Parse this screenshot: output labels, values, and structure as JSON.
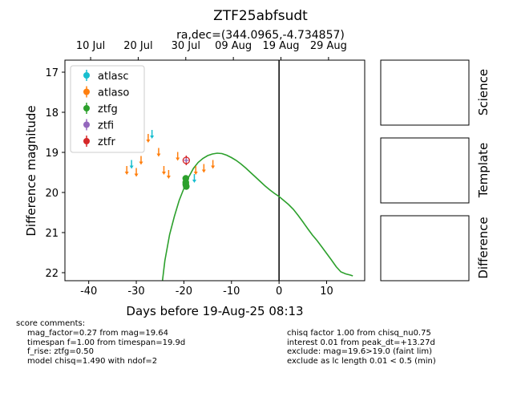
{
  "title": "ZTF25abfsudt",
  "subtitle": "ra,dec=(344.0965,-4.734857)",
  "chart_data": {
    "type": "scatter",
    "xlabel": "Days before 19-Aug-25 08:13",
    "ylabel": "Difference magnitude",
    "xlim": [
      -45,
      18
    ],
    "ylim": [
      22.2,
      16.7
    ],
    "y_inverted": true,
    "x_ticks": [
      -40,
      -30,
      -20,
      -10,
      0,
      10
    ],
    "y_ticks": [
      17,
      18,
      19,
      20,
      21,
      22
    ],
    "top_axis_ticks": [
      {
        "x": -39.6,
        "label": "10 Jul"
      },
      {
        "x": -29.6,
        "label": "20 Jul"
      },
      {
        "x": -19.6,
        "label": "30 Jul"
      },
      {
        "x": -9.6,
        "label": "09 Aug"
      },
      {
        "x": 0.4,
        "label": "19 Aug"
      },
      {
        "x": 10.4,
        "label": "29 Aug"
      }
    ],
    "vline_x": 0,
    "legend_position": "upper-left",
    "legend": [
      {
        "name": "atlasc",
        "color": "#17becf"
      },
      {
        "name": "atlaso",
        "color": "#ff7f0e"
      },
      {
        "name": "ztfg",
        "color": "#2ca02c"
      },
      {
        "name": "ztfi",
        "color": "#9467bd"
      },
      {
        "name": "ztfr",
        "color": "#d62728"
      }
    ],
    "upper_limits": {
      "atlasc": {
        "color": "#17becf",
        "x": [
          -31,
          -26.7,
          -17.8
        ],
        "y": [
          19.25,
          18.5,
          19.6
        ]
      },
      "atlaso": {
        "color": "#ff7f0e",
        "x": [
          -32,
          -30,
          -29,
          -27.5,
          -25.3,
          -24.2,
          -23.2,
          -21.3,
          -17.5,
          -15.8,
          -13.9
        ],
        "y": [
          19.4,
          19.45,
          19.15,
          18.6,
          18.95,
          19.4,
          19.5,
          19.05,
          19.4,
          19.35,
          19.25
        ]
      }
    },
    "points": {
      "ztfg": {
        "color": "#2ca02c",
        "x": [
          -19.6,
          -19.6,
          -19.6,
          -19.5
        ],
        "y": [
          19.65,
          19.75,
          19.8,
          19.85
        ]
      },
      "ztfi": {
        "color": "#9467bd",
        "x": [
          -19.5
        ],
        "y": [
          19.2
        ]
      },
      "ztfr": {
        "color": "#d62728",
        "x": [
          -19.5
        ],
        "y": [
          19.2
        ],
        "err": [
          0.12
        ]
      }
    },
    "model_curve": {
      "color": "#2ca02c",
      "x": [
        -24.5,
        -24,
        -23,
        -22,
        -21,
        -20,
        -19,
        -18,
        -17,
        -16,
        -15,
        -14,
        -13,
        -12,
        -11,
        -10,
        -9,
        -8,
        -7,
        -6,
        -5,
        -4,
        -3,
        -2,
        -1,
        0,
        1,
        2,
        3,
        4,
        5,
        6,
        7,
        8,
        9,
        10,
        11,
        12,
        13,
        14,
        15,
        15.5
      ],
      "y": [
        22.2,
        21.7,
        21.05,
        20.6,
        20.2,
        19.9,
        19.62,
        19.4,
        19.25,
        19.15,
        19.08,
        19.04,
        19.02,
        19.03,
        19.07,
        19.13,
        19.2,
        19.29,
        19.39,
        19.5,
        19.61,
        19.72,
        19.83,
        19.93,
        20.02,
        20.1,
        20.2,
        20.3,
        20.42,
        20.57,
        20.73,
        20.9,
        21.06,
        21.2,
        21.36,
        21.52,
        21.68,
        21.85,
        21.98,
        22.03,
        22.06,
        22.08
      ]
    }
  },
  "panels": [
    {
      "label": "Science"
    },
    {
      "label": "Template"
    },
    {
      "label": "Difference"
    }
  ],
  "comments": {
    "header": "score comments:",
    "left": [
      "mag_factor=0.27 from mag=19.64",
      "timespan f=1.00 from timespan=19.9d",
      "f_rise: ztfg=0.50",
      "model chisq=1.490 with ndof=2"
    ],
    "right": [
      "chisq factor 1.00 from chisq_nu0.75",
      "interest 0.01 from peak_dt=+13.27d",
      "exclude: mag=19.6>19.0 (faint lim)",
      "exclude as lc length 0.01 < 0.5 (min)"
    ]
  }
}
